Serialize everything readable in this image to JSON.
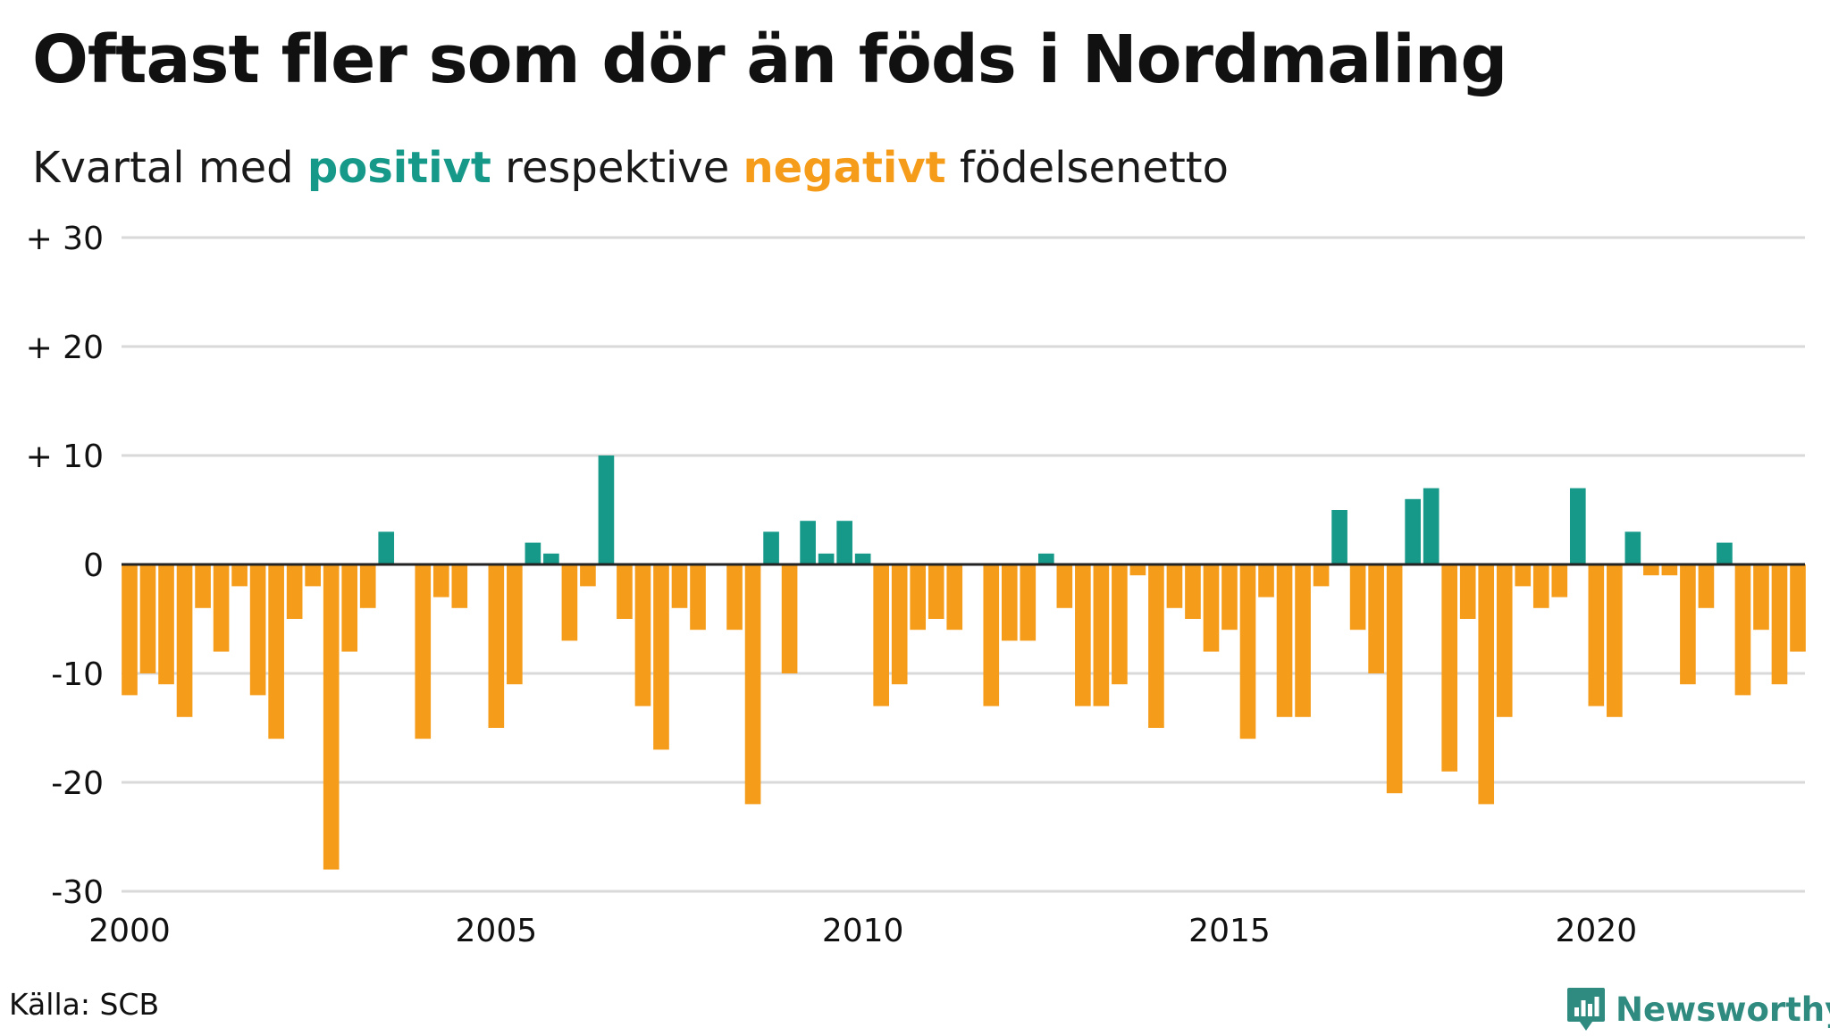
{
  "header": {
    "title": "Oftast fler som dör än föds i Nordmaling",
    "subtitle_prefix": "Kvartal med ",
    "subtitle_positive": "positivt",
    "subtitle_middle": " respektive ",
    "subtitle_negative": "negativt",
    "subtitle_suffix": " födelsenetto"
  },
  "footer": {
    "source": "Källa: SCB",
    "brand": "Newsworthy",
    "brand_icon": "bar-chart-speech-bubble-icon"
  },
  "colors": {
    "positive": "#17998a",
    "negative": "#f59d1b",
    "grid": "#d9d9d9",
    "baseline": "#222222",
    "brand": "#2f8a7f"
  },
  "chart_data": {
    "type": "bar",
    "title": "Oftast fler som dör än föds i Nordmaling",
    "subtitle": "Kvartal med positivt respektive negativt födelsenetto",
    "xlabel": "",
    "ylabel": "",
    "ylim": [
      -30,
      30
    ],
    "xlim": [
      2000,
      2022.75
    ],
    "y_ticks": [
      {
        "value": 30,
        "label": "+ 30"
      },
      {
        "value": 20,
        "label": "+ 20"
      },
      {
        "value": 10,
        "label": "+ 10"
      },
      {
        "value": 0,
        "label": "0"
      },
      {
        "value": -10,
        "label": "-10"
      },
      {
        "value": -20,
        "label": "-20"
      },
      {
        "value": -30,
        "label": "-30"
      }
    ],
    "x_ticks": [
      {
        "value": 2000,
        "label": "2000"
      },
      {
        "value": 2005,
        "label": "2005"
      },
      {
        "value": 2010,
        "label": "2010"
      },
      {
        "value": 2015,
        "label": "2015"
      },
      {
        "value": 2020,
        "label": "2020"
      }
    ],
    "grid": true,
    "legend": "none",
    "categories": [
      "2000K1",
      "2000K2",
      "2000K3",
      "2000K4",
      "2001K1",
      "2001K2",
      "2001K3",
      "2001K4",
      "2002K1",
      "2002K2",
      "2002K3",
      "2002K4",
      "2003K1",
      "2003K2",
      "2003K3",
      "2003K4",
      "2004K1",
      "2004K2",
      "2004K3",
      "2004K4",
      "2005K1",
      "2005K2",
      "2005K3",
      "2005K4",
      "2006K1",
      "2006K2",
      "2006K3",
      "2006K4",
      "2007K1",
      "2007K2",
      "2007K3",
      "2007K4",
      "2008K1",
      "2008K2",
      "2008K3",
      "2008K4",
      "2009K1",
      "2009K2",
      "2009K3",
      "2009K4",
      "2010K1",
      "2010K2",
      "2010K3",
      "2010K4",
      "2011K1",
      "2011K2",
      "2011K3",
      "2011K4",
      "2012K1",
      "2012K2",
      "2012K3",
      "2012K4",
      "2013K1",
      "2013K2",
      "2013K3",
      "2013K4",
      "2014K1",
      "2014K2",
      "2014K3",
      "2014K4",
      "2015K1",
      "2015K2",
      "2015K3",
      "2015K4",
      "2016K1",
      "2016K2",
      "2016K3",
      "2016K4",
      "2017K1",
      "2017K2",
      "2017K3",
      "2017K4",
      "2018K1",
      "2018K2",
      "2018K3",
      "2018K4",
      "2019K1",
      "2019K2",
      "2019K3",
      "2019K4",
      "2020K1",
      "2020K2",
      "2020K3",
      "2020K4",
      "2021K1",
      "2021K2",
      "2021K3",
      "2021K4",
      "2022K1",
      "2022K2",
      "2022K3",
      "2022K4"
    ],
    "values": [
      -12,
      -10,
      -11,
      -14,
      -4,
      -8,
      -2,
      -12,
      -16,
      -5,
      -2,
      -28,
      -8,
      -4,
      3,
      0,
      -16,
      -3,
      -4,
      0,
      -15,
      -11,
      2,
      1,
      -7,
      -2,
      10,
      -5,
      -13,
      -17,
      -4,
      -6,
      0,
      -6,
      -22,
      3,
      -10,
      4,
      1,
      4,
      1,
      -13,
      -11,
      -6,
      -5,
      -6,
      0,
      -13,
      -7,
      -7,
      1,
      -4,
      -13,
      -13,
      -11,
      -1,
      -15,
      -4,
      -5,
      -8,
      -6,
      -16,
      -3,
      -14,
      -14,
      -2,
      5,
      -6,
      -10,
      -21,
      6,
      7,
      -19,
      -5,
      -22,
      -14,
      -2,
      -4,
      -3,
      7,
      -13,
      -14,
      3,
      -1,
      -1,
      -11,
      -4,
      2,
      -12,
      -6,
      -11,
      -8
    ]
  }
}
